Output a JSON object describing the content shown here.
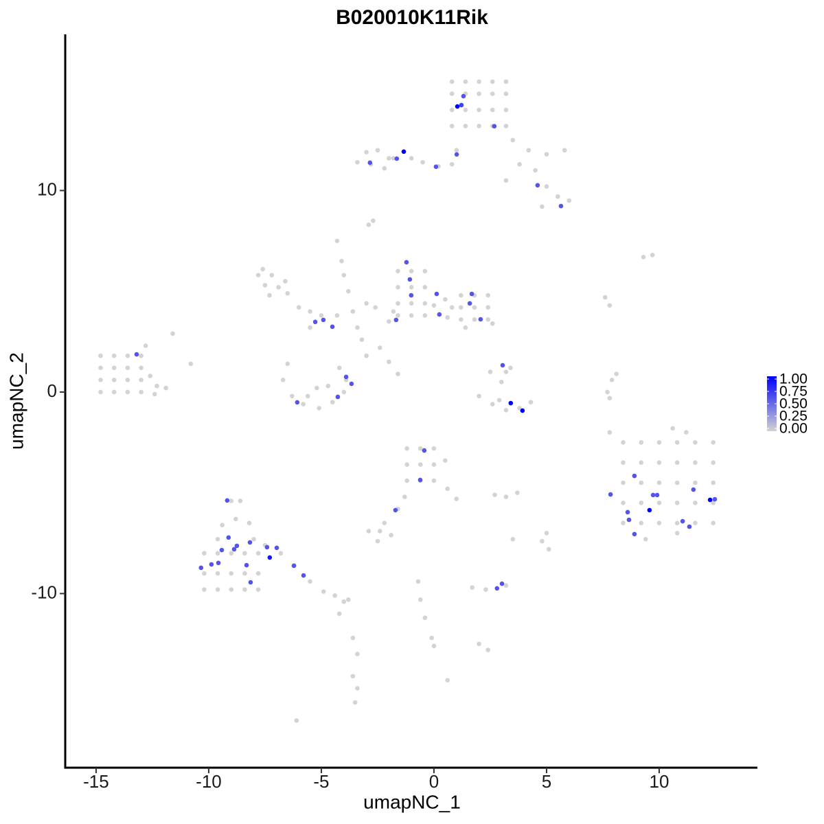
{
  "chart_data": {
    "type": "scatter",
    "title": "B020010K11Rik",
    "xlabel": "umapNC_1",
    "ylabel": "umapNC_2",
    "xlim": [
      -16.37,
      14.36
    ],
    "ylim": [
      -18.64,
      17.75
    ],
    "xticks": [
      -15,
      -10,
      -5,
      0,
      5,
      10
    ],
    "yticks": [
      -10,
      0,
      10
    ],
    "low_color": "#d3d3d3",
    "high_color": "#0000ff",
    "colorbar": {
      "lim": [
        0,
        1
      ],
      "ticks": [
        {
          "value": 0,
          "label": "0.00"
        },
        {
          "value": 0.25,
          "label": "0.25"
        },
        {
          "value": 0.5,
          "label": "0.50"
        },
        {
          "value": 0.75,
          "label": "0.75"
        },
        {
          "value": 1,
          "label": "1.00"
        }
      ]
    },
    "x": [
      0.8,
      1.4,
      2.0,
      2.6,
      3.2,
      0.8,
      1.4,
      2.0,
      2.6,
      3.2,
      0.8,
      1.4,
      2.0,
      2.6,
      3.2,
      0.8,
      1.4,
      2.0,
      2.6,
      3.2,
      3.5,
      4.2,
      5,
      5.8,
      4.5,
      5,
      5.5,
      6,
      4.8,
      3.8,
      3.2,
      1,
      0.8,
      0.2,
      -0.5,
      -1,
      -1.8,
      -3,
      -2.5,
      -2,
      -2.8,
      -3.4,
      -2.2,
      -2.7,
      -2.9,
      -7.8,
      -7.6,
      -7.2,
      -6.9,
      -6.5,
      -7.5,
      -7.3,
      -6.6,
      -6,
      -5.5,
      -5,
      -4.3,
      -3.6,
      -3,
      -2.6,
      -3.4,
      -3.2,
      -3,
      -2.4,
      -2,
      -1.6,
      -4.1,
      -4.3,
      -4,
      -3.8,
      -5.5,
      -1.6,
      -1,
      -0.4,
      -1.6,
      -1,
      -0.4,
      -1.6,
      -1,
      -0.4,
      -1.6,
      -1,
      -0.4,
      0,
      0.5,
      0.8,
      -1.8,
      -2,
      1.2,
      1.8,
      2.4,
      1.2,
      1.8,
      2.4,
      1.2,
      1.8,
      2.4,
      2.6,
      1.4,
      0.6,
      -6.5,
      -6.7,
      -6.3,
      -5.8,
      -5.1,
      -4.5,
      -4,
      -3.9,
      -4.2,
      -5.2,
      -5.6,
      -4.7,
      -14.8,
      -14.2,
      -13.6,
      -13,
      -14.8,
      -14.2,
      -13.6,
      -13,
      -14.8,
      -14.2,
      -13.6,
      -13,
      -14.8,
      -14.2,
      -13.6,
      -13,
      -12.6,
      -12.3,
      -12.4,
      -11.9,
      -12.8,
      -11.6,
      -10.8,
      2,
      2.6,
      3.2,
      3.8,
      4.3,
      2.9,
      3,
      3.2,
      2.5,
      3.4,
      7.7,
      7.9,
      8.1,
      7.8,
      7.8,
      9.3,
      9.7,
      7.6,
      7.8,
      8.4,
      9.2,
      10,
      10.8,
      11.6,
      12.4,
      8.4,
      9.2,
      10,
      10.8,
      11.6,
      12.4,
      8.4,
      9.2,
      10,
      10.8,
      11.6,
      12.4,
      8.4,
      9.2,
      10,
      10.8,
      11.6,
      12.4,
      8.4,
      9.2,
      10,
      10.8,
      11.6,
      12.4,
      10.6,
      11.2,
      9.4,
      10.8,
      -1.2,
      -0.6,
      0,
      -1.2,
      -0.6,
      0,
      -1.2,
      -0.6,
      0,
      0.6,
      1,
      0.5,
      -1.3,
      -1.6,
      -2.2,
      -2.4,
      -2.9,
      -1.9,
      -2.5,
      2.7,
      3.2,
      3.7,
      5,
      5.1,
      3.5,
      4.8,
      -10.2,
      -9.6,
      -9,
      -8.4,
      -7.8,
      -10.2,
      -9.6,
      -9,
      -8.4,
      -7.8,
      -10.2,
      -9.6,
      -9,
      -8.4,
      -7.8,
      -9,
      -8.6,
      -8.8,
      -8.2,
      -9.4,
      -9.6,
      -8,
      -7.5,
      -6.8,
      -6.2,
      -5.5,
      -4.9,
      -4.4,
      -4,
      -3.8,
      -4.2,
      -3.6,
      -3.4,
      -3.6,
      -3.4,
      -3.5,
      -6.1,
      -0.7,
      -0.6,
      -0.4,
      -0.1,
      0,
      0.6,
      1.7,
      2.3,
      3.2,
      2,
      2.4,
      1.04,
      1.22,
      1.31,
      -1.34,
      -2.84,
      -1.65,
      0.09,
      1.01,
      2.68,
      4.6,
      5.64,
      -1.22,
      -1.07,
      -1.01,
      0.12,
      0.24,
      -1.68,
      1.68,
      1.59,
      2.07,
      -5.27,
      -4.91,
      -4.51,
      -13.2,
      -3.9,
      -3.66,
      -4.27,
      -6.07,
      3.05,
      3.41,
      3.93,
      -0.43,
      -0.61,
      -1.71,
      -9.18,
      -9.12,
      -8.75,
      -8.87,
      -8.17,
      -7.41,
      -7.29,
      -9.42,
      -9.57,
      -9.88,
      -10.34,
      -8.32,
      -8.14,
      -6.98,
      -6.22,
      -5.79,
      2.8,
      3.02,
      7.84,
      8.9,
      9.73,
      9.91,
      9.57,
      8.6,
      8.66,
      8.9,
      11.52,
      12.26,
      12.47,
      11.04,
      11.34
    ],
    "y": [
      13.2,
      13.2,
      13.2,
      13.2,
      13.2,
      14.0,
      14.0,
      14.0,
      14.0,
      14.0,
      14.8,
      14.8,
      14.8,
      14.8,
      14.8,
      15.4,
      15.4,
      15.4,
      15.4,
      15.4,
      12.5,
      12,
      11.8,
      12,
      11,
      10.2,
      9.7,
      9.5,
      9.2,
      11.3,
      10.5,
      12,
      11.3,
      11.2,
      11.4,
      11.6,
      11.6,
      11.9,
      12,
      11.6,
      11.3,
      11.4,
      11.1,
      8.5,
      8.3,
      5.8,
      6.1,
      5.8,
      5.2,
      4.9,
      5.3,
      4.8,
      5.5,
      4.2,
      4,
      3.8,
      3.8,
      4,
      4.4,
      4.2,
      3.2,
      2.6,
      1.8,
      2.2,
      1.5,
      0.9,
      6.5,
      7.5,
      5.8,
      5,
      3.2,
      6,
      6,
      6,
      5.2,
      5.2,
      5.2,
      4.4,
      4.4,
      4.4,
      3.8,
      3.8,
      3.8,
      4.3,
      4.6,
      4.2,
      4,
      3.5,
      4.8,
      4.8,
      4.8,
      4.2,
      4.2,
      4.2,
      3.6,
      3.6,
      3.6,
      3.4,
      3.2,
      3.7,
      1.4,
      0.6,
      -0.2,
      -0.6,
      -0.8,
      -0.5,
      0,
      0.6,
      1.2,
      0.2,
      -0.2,
      0.3,
      1.8,
      1.8,
      1.8,
      1.8,
      1.2,
      1.2,
      1.2,
      1.2,
      0.6,
      0.6,
      0.6,
      0.6,
      0,
      0,
      0,
      0,
      0.8,
      0.3,
      -0.1,
      0.2,
      2.3,
      2.9,
      1.4,
      -0.2,
      -0.6,
      -0.9,
      -0.8,
      -0.5,
      -0.4,
      0.5,
      1,
      1,
      1.2,
      0,
      0.6,
      0.9,
      -0.3,
      -2,
      6.7,
      6.8,
      4.7,
      4.3,
      -2.5,
      -2.5,
      -2.5,
      -2.5,
      -2.5,
      -2.5,
      -3.5,
      -3.5,
      -3.5,
      -3.5,
      -3.5,
      -3.5,
      -4.5,
      -4.5,
      -4.5,
      -4.5,
      -4.5,
      -4.5,
      -5.5,
      -5.5,
      -5.5,
      -5.5,
      -5.5,
      -5.5,
      -6.5,
      -6.5,
      -6.5,
      -6.5,
      -6.5,
      -6.5,
      -1.8,
      -2,
      -7.3,
      -7,
      -2.8,
      -2.8,
      -2.8,
      -3.6,
      -3.6,
      -3.6,
      -4.4,
      -4.4,
      -4.4,
      -4.8,
      -5.3,
      -3.4,
      -5.2,
      -5.8,
      -6.5,
      -6.9,
      -6.9,
      -7.1,
      -7.4,
      -5.1,
      -5.2,
      -5,
      -7,
      -7.8,
      -7.3,
      -7.4,
      -8,
      -8,
      -8,
      -8,
      -8,
      -9,
      -9,
      -9,
      -9,
      -9,
      -9.8,
      -9.8,
      -9.8,
      -9.8,
      -9.8,
      -5.4,
      -5.4,
      -6.3,
      -6.5,
      -6.6,
      -7.3,
      -7.3,
      -7.6,
      -8,
      -8.6,
      -9.4,
      -9.9,
      -10.1,
      -10.4,
      -10.3,
      -11,
      -12.2,
      -13,
      -14.1,
      -14.7,
      -15.4,
      -16.3,
      -9.4,
      -10.3,
      -11.2,
      -12.2,
      -12.6,
      -14.3,
      -9.7,
      -9.8,
      -9.6,
      -12.5,
      -12.8,
      14.17,
      14.24,
      14.68,
      11.93,
      11.38,
      11.58,
      11.18,
      11.79,
      13.19,
      10.26,
      9.23,
      6.44,
      5.59,
      4.8,
      4.87,
      3.85,
      3.58,
      4.87,
      4.4,
      3.61,
      3.48,
      3.58,
      3.24,
      1.87,
      0.75,
      0.41,
      -0.24,
      -0.51,
      1.33,
      -0.55,
      -0.92,
      -2.9,
      -4.36,
      -5.86,
      -5.38,
      -7.22,
      -7.63,
      -7.8,
      -7.46,
      -7.7,
      -8.21,
      -7.84,
      -8.48,
      -8.55,
      -8.72,
      -8.59,
      -9.44,
      -7.73,
      -8.62,
      -9.1,
      -9.74,
      -9.51,
      -5.08,
      -4.16,
      -5.11,
      -5.11,
      -5.86,
      -5.96,
      -6.34,
      -7.05,
      -4.84,
      -5.35,
      -5.32,
      -6.41,
      -6.68
    ],
    "values": [
      0,
      0,
      0,
      0,
      0,
      0,
      0,
      0,
      0,
      0,
      0,
      0,
      0,
      0,
      0,
      0,
      0,
      0,
      0,
      0,
      0,
      0,
      0,
      0,
      0,
      0,
      0,
      0,
      0,
      0,
      0,
      0,
      0,
      0,
      0,
      0,
      0,
      0,
      0,
      0,
      0,
      0,
      0,
      0,
      0,
      0,
      0,
      0,
      0,
      0,
      0,
      0,
      0,
      0,
      0,
      0,
      0,
      0,
      0,
      0,
      0,
      0,
      0,
      0,
      0,
      0,
      0,
      0,
      0,
      0,
      0,
      0,
      0,
      0,
      0,
      0,
      0,
      0,
      0,
      0,
      0,
      0,
      0,
      0,
      0,
      0,
      0,
      0,
      0,
      0,
      0,
      0,
      0,
      0,
      0,
      0,
      0,
      0,
      0,
      0,
      0,
      0,
      0,
      0,
      0,
      0,
      0,
      0,
      0,
      0,
      0,
      0,
      0,
      0,
      0,
      0,
      0,
      0,
      0,
      0,
      0,
      0,
      0,
      0,
      0,
      0,
      0,
      0,
      0,
      0,
      0,
      0,
      0,
      0,
      0,
      0,
      0,
      0,
      0,
      0,
      0,
      0,
      0,
      0,
      0,
      0,
      0,
      0,
      0,
      0,
      0,
      0,
      0,
      0,
      0,
      0,
      0,
      0,
      0,
      0,
      0,
      0,
      0,
      0,
      0,
      0,
      0,
      0,
      0,
      0,
      0,
      0,
      0,
      0,
      0,
      0,
      0,
      0,
      0,
      0,
      0,
      0,
      0,
      0,
      0,
      0,
      0,
      0,
      0,
      0,
      0,
      0,
      0,
      0,
      0,
      0,
      0,
      0,
      0,
      0,
      0,
      0,
      0,
      0,
      0,
      0,
      0,
      0,
      0,
      0,
      0,
      0,
      0,
      0,
      0,
      0,
      0,
      0,
      0,
      0,
      0,
      0,
      0,
      0,
      0,
      0,
      0,
      0,
      0,
      0,
      0,
      0,
      0,
      0,
      0,
      0,
      0,
      0,
      0,
      0,
      0,
      0,
      0,
      0,
      0,
      0,
      0,
      0,
      0,
      0,
      0,
      0,
      0,
      0,
      0,
      0,
      0,
      0,
      0,
      0,
      0,
      0,
      1,
      0.7,
      0.6,
      1,
      0.6,
      0.6,
      0.6,
      0.6,
      0.6,
      0.6,
      0.6,
      0.6,
      0.6,
      0.6,
      0.6,
      0.6,
      0.6,
      0.6,
      0.6,
      0.6,
      0.6,
      0.6,
      0.6,
      0.6,
      0.6,
      0.6,
      0.6,
      0.6,
      0.6,
      1,
      1,
      0.6,
      0.6,
      0.6,
      0.6,
      0.6,
      0.6,
      0.6,
      0.6,
      0.6,
      0.9,
      0.6,
      0.6,
      0.6,
      0.6,
      0.6,
      0.6,
      0.6,
      0.6,
      0.6,
      0.6,
      0.6,
      0.6,
      0.6,
      0.6,
      0.6,
      1,
      0.6,
      0.6,
      0.6,
      0.6,
      1,
      0.6,
      0.6,
      0.6
    ]
  }
}
